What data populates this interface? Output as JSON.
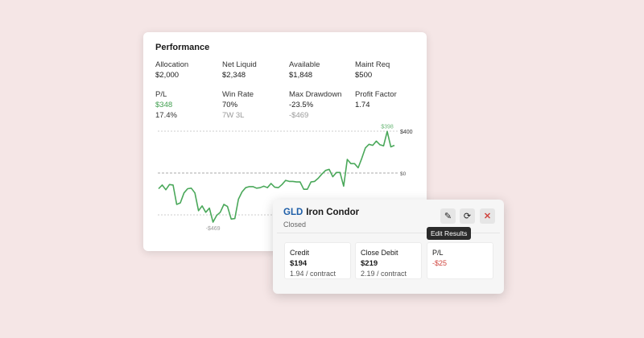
{
  "performance": {
    "title": "Performance",
    "stats": [
      {
        "label": "Allocation",
        "value": "$2,000"
      },
      {
        "label": "Net Liquid",
        "value": "$2,348"
      },
      {
        "label": "Available",
        "value": "$1,848"
      },
      {
        "label": "Maint Req",
        "value": "$500"
      },
      {
        "label": "P/L",
        "value": "$348",
        "sub": "17.4%"
      },
      {
        "label": "Win Rate",
        "value": "70%",
        "sub": "7W 3L"
      },
      {
        "label": "Max Drawdown",
        "value": "-23.5%",
        "sub": "-$469"
      },
      {
        "label": "Profit Factor",
        "value": "1.74"
      }
    ]
  },
  "chart_data": {
    "type": "line",
    "title": "",
    "y_ticks": [
      "$400",
      "$0"
    ],
    "ylim": [
      -400,
      400
    ],
    "max_label": "$398",
    "min_label": "-$469",
    "line_color": "#4aa85a",
    "values": [
      -150,
      -115,
      -160,
      -110,
      -115,
      -300,
      -285,
      -190,
      -150,
      -145,
      -190,
      -360,
      -315,
      -375,
      -335,
      -469,
      -405,
      -375,
      -300,
      -320,
      -440,
      -435,
      -250,
      -180,
      -140,
      -130,
      -130,
      -145,
      -140,
      -125,
      -140,
      -100,
      -135,
      -140,
      -110,
      -70,
      -80,
      -80,
      -85,
      -85,
      -155,
      -155,
      -85,
      -80,
      -50,
      -10,
      25,
      35,
      -35,
      5,
      5,
      -125,
      130,
      90,
      90,
      50,
      140,
      240,
      275,
      265,
      305,
      270,
      260,
      398,
      250,
      265
    ]
  },
  "trade": {
    "symbol": "GLD",
    "name": "Iron Condor",
    "status": "Closed",
    "tooltip": "Edit Results",
    "cards": [
      {
        "label": "Credit",
        "value": "$194",
        "sub": "1.94 / contract"
      },
      {
        "label": "Close Debit",
        "value": "$219",
        "sub": "2.19 / contract"
      },
      {
        "label": "P/L",
        "value": "-$25"
      }
    ]
  }
}
